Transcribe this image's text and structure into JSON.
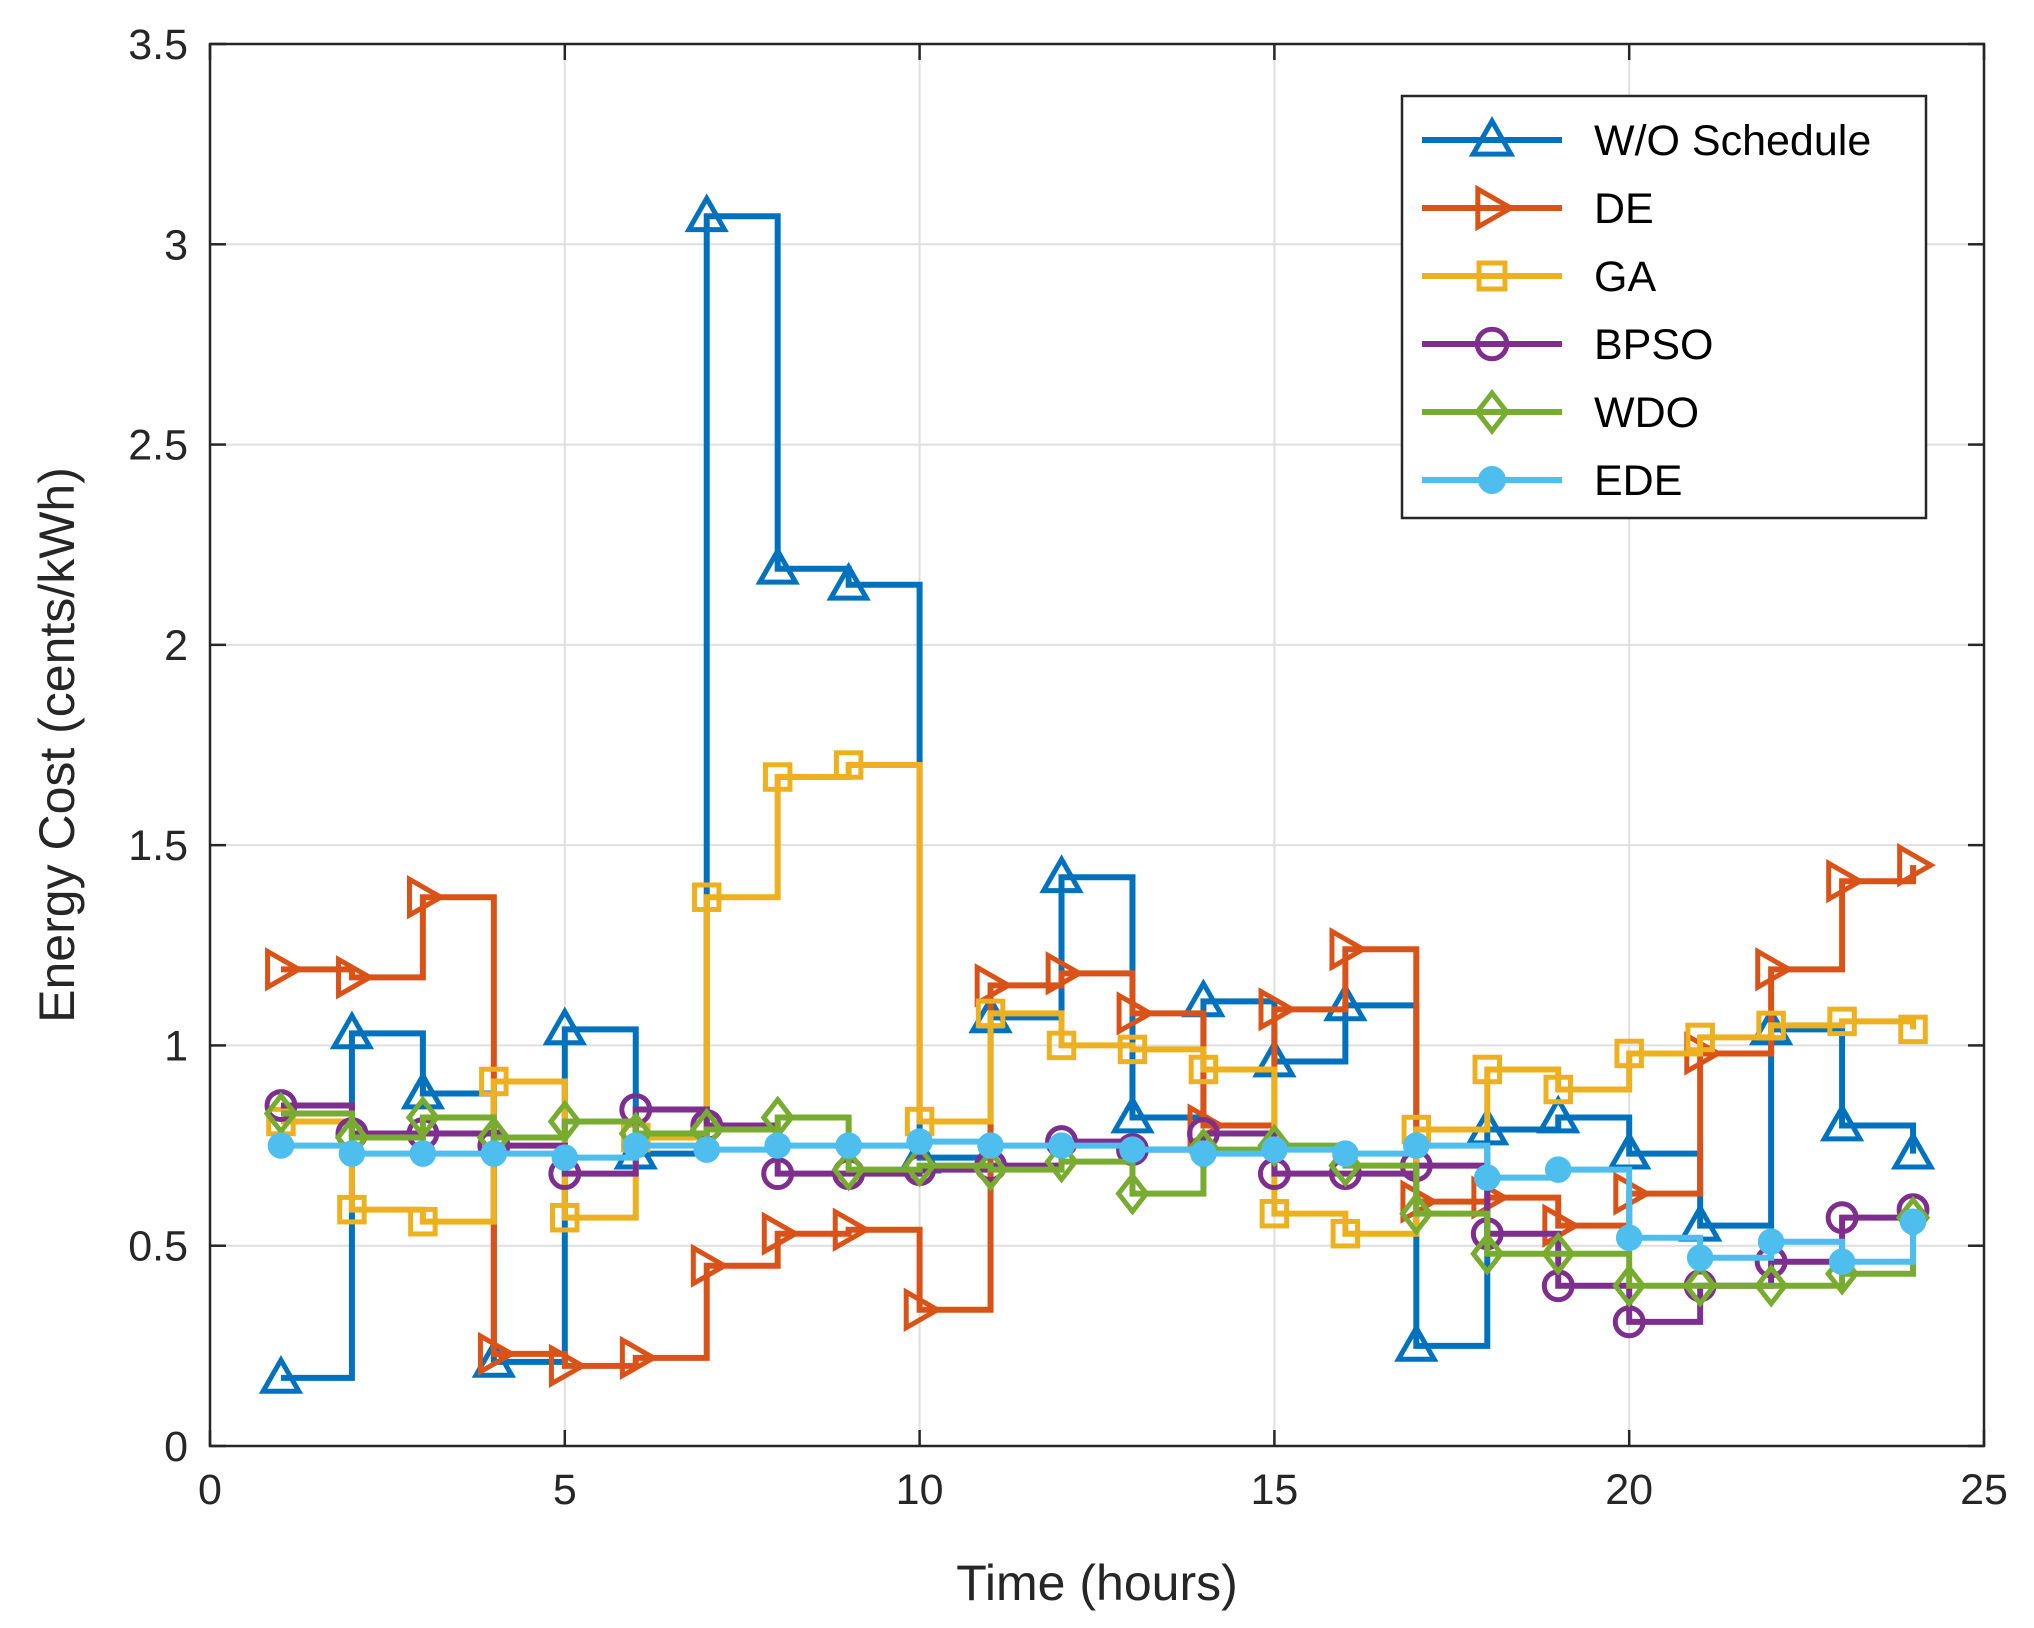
{
  "chart_data": {
    "type": "line",
    "step": "post",
    "title": "",
    "xlabel": "Time (hours)",
    "ylabel": "Energy Cost (cents/kWh)",
    "xlim": [
      0,
      25
    ],
    "ylim": [
      0,
      3.5
    ],
    "xticks": [
      0,
      5,
      10,
      15,
      20,
      25
    ],
    "yticks": [
      0,
      0.5,
      1,
      1.5,
      2,
      2.5,
      3,
      3.5
    ],
    "xtick_labels": [
      "0",
      "5",
      "10",
      "15",
      "20",
      "25"
    ],
    "ytick_labels": [
      "0",
      "0.5",
      "1",
      "1.5",
      "2",
      "2.5",
      "3",
      "3.5"
    ],
    "grid": true,
    "legend_position": "top-right",
    "x": [
      1,
      2,
      3,
      4,
      5,
      6,
      7,
      8,
      9,
      10,
      11,
      12,
      13,
      14,
      15,
      16,
      17,
      18,
      19,
      20,
      21,
      22,
      23,
      24
    ],
    "series": [
      {
        "name": "W/O Schedule",
        "color": "#0072BD",
        "marker": "triangle-up",
        "values": [
          0.17,
          1.03,
          0.88,
          0.21,
          1.04,
          0.73,
          3.07,
          2.19,
          2.15,
          0.72,
          1.07,
          1.42,
          0.82,
          1.11,
          0.96,
          1.1,
          0.25,
          0.79,
          0.82,
          0.73,
          0.55,
          1.04,
          0.8,
          0.73
        ]
      },
      {
        "name": "DE",
        "color": "#D95319",
        "marker": "triangle-right",
        "values": [
          1.19,
          1.17,
          1.37,
          0.23,
          0.2,
          0.22,
          0.45,
          0.53,
          0.54,
          0.34,
          1.15,
          1.18,
          1.08,
          0.8,
          1.09,
          1.24,
          0.61,
          0.62,
          0.55,
          0.63,
          0.98,
          1.19,
          1.41,
          1.45
        ]
      },
      {
        "name": "GA",
        "color": "#EDB120",
        "marker": "square",
        "values": [
          0.81,
          0.59,
          0.56,
          0.91,
          0.57,
          0.77,
          1.37,
          1.67,
          1.7,
          0.81,
          1.08,
          1.0,
          0.99,
          0.94,
          0.58,
          0.53,
          0.79,
          0.94,
          0.89,
          0.98,
          1.02,
          1.05,
          1.06,
          1.04
        ]
      },
      {
        "name": "BPSO",
        "color": "#7E2F8E",
        "marker": "circle",
        "values": [
          0.85,
          0.78,
          0.78,
          0.75,
          0.68,
          0.84,
          0.8,
          0.68,
          0.68,
          0.69,
          0.7,
          0.76,
          0.74,
          0.78,
          0.68,
          0.68,
          0.7,
          0.53,
          0.4,
          0.31,
          0.4,
          0.46,
          0.57,
          0.59
        ]
      },
      {
        "name": "WDO",
        "color": "#77AC30",
        "marker": "diamond",
        "values": [
          0.83,
          0.77,
          0.82,
          0.77,
          0.81,
          0.78,
          0.79,
          0.82,
          0.69,
          0.7,
          0.69,
          0.71,
          0.63,
          0.74,
          0.75,
          0.7,
          0.58,
          0.48,
          0.48,
          0.4,
          0.4,
          0.4,
          0.43,
          0.57
        ]
      },
      {
        "name": "EDE",
        "color": "#4DBEEE",
        "marker": "filled-circle",
        "values": [
          0.75,
          0.73,
          0.73,
          0.73,
          0.72,
          0.75,
          0.74,
          0.75,
          0.75,
          0.76,
          0.75,
          0.75,
          0.74,
          0.73,
          0.74,
          0.73,
          0.75,
          0.67,
          0.69,
          0.52,
          0.47,
          0.51,
          0.46,
          0.56
        ]
      }
    ]
  }
}
